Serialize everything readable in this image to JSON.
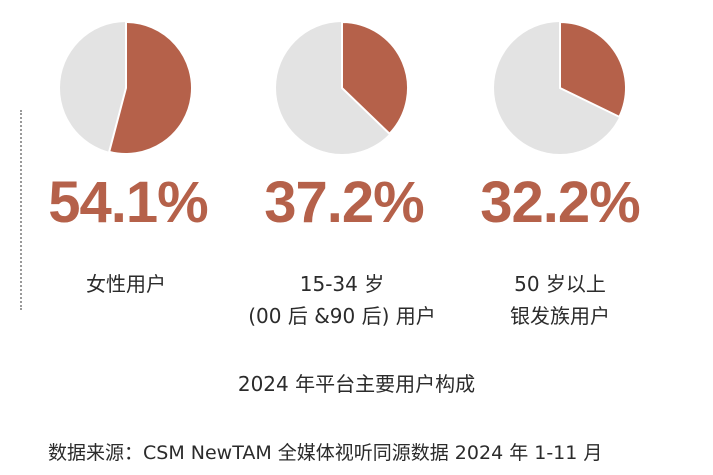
{
  "colors": {
    "accent": "#b5614a",
    "rest": "#e3e3e3"
  },
  "chart_data": {
    "type": "pie",
    "title": "2024 年平台主要用户构成",
    "source": "数据来源：CSM NewTAM 全媒体视听同源数据 2024 年 1-11 月",
    "items": [
      {
        "value": 54.1,
        "value_label": "54.1%",
        "label_lines": [
          "女性用户"
        ]
      },
      {
        "value": 37.2,
        "value_label": "37.2%",
        "label_lines": [
          "15-34 岁",
          "(00 后 &90 后) 用户"
        ]
      },
      {
        "value": 32.2,
        "value_label": "32.2%",
        "label_lines": [
          "50 岁以上",
          "银发族用户"
        ]
      }
    ]
  }
}
